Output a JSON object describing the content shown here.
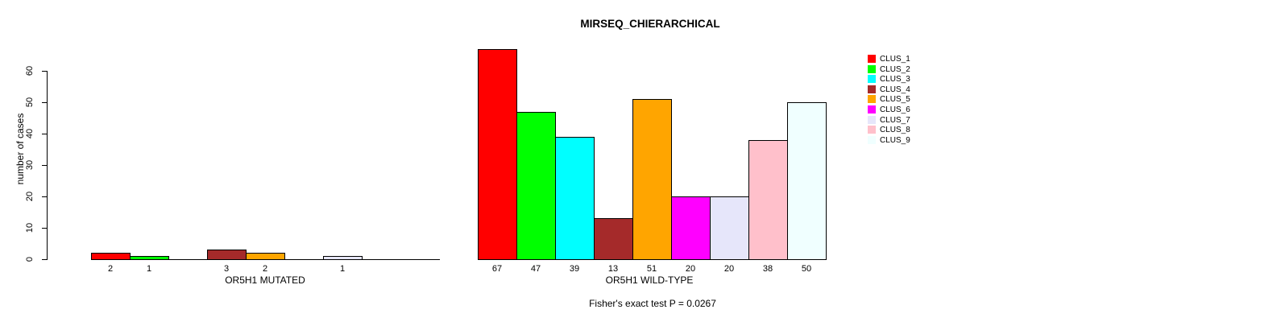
{
  "chart_data": {
    "type": "bar",
    "title": "MIRSEQ_CHIERARCHICAL",
    "ylabel": "number of cases",
    "annotation": "Fisher's exact test P = 0.0267",
    "ylim": [
      0,
      60
    ],
    "yticks": [
      0,
      10,
      20,
      30,
      40,
      50,
      60
    ],
    "grid": false,
    "legend_position": "right",
    "categories": [
      "CLUS_1",
      "CLUS_2",
      "CLUS_3",
      "CLUS_4",
      "CLUS_5",
      "CLUS_6",
      "CLUS_7",
      "CLUS_8",
      "CLUS_9"
    ],
    "colors": [
      "#FF0000",
      "#00FF00",
      "#00FFFF",
      "#A52A2A",
      "#FFA500",
      "#FF00FF",
      "#E6E6FA",
      "#FFC0CB",
      "#F0FFFF"
    ],
    "series": [
      {
        "name": "OR5H1 MUTATED",
        "values": [
          2,
          1,
          0,
          3,
          2,
          0,
          1,
          0,
          0
        ]
      },
      {
        "name": "OR5H1 WILD-TYPE",
        "values": [
          67,
          47,
          39,
          13,
          51,
          20,
          20,
          38,
          50
        ]
      }
    ]
  }
}
